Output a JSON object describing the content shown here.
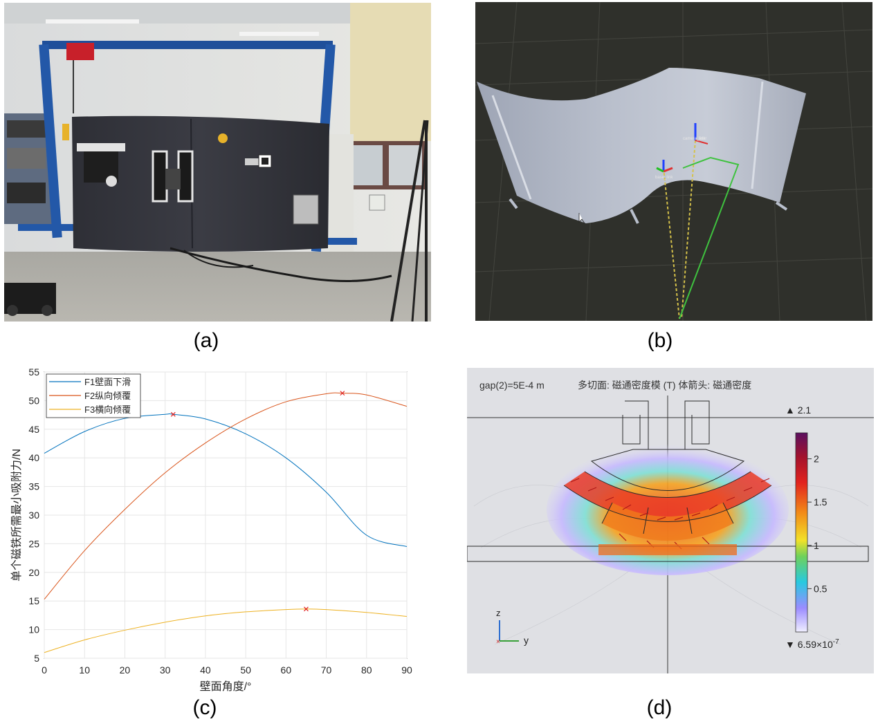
{
  "captions": {
    "a": "(a)",
    "b": "(b)",
    "c": "(c)",
    "d": "(d)"
  },
  "panel_b": {
    "frame_labels": [
      "camera_link",
      "lidar",
      "base_link"
    ]
  },
  "panel_c": {
    "chart_data": {
      "type": "line",
      "xlabel": "壁面角度/°",
      "ylabel": "单个磁铁所需最小吸附力/N",
      "xlim": [
        0,
        90
      ],
      "ylim": [
        5,
        55
      ],
      "xticks": [
        0,
        10,
        20,
        30,
        40,
        50,
        60,
        70,
        80,
        90
      ],
      "yticks": [
        5,
        10,
        15,
        20,
        25,
        30,
        35,
        40,
        45,
        50,
        55
      ],
      "series": [
        {
          "name": "F1壁面下滑",
          "color": "#0072BD",
          "x": [
            0,
            10,
            20,
            30,
            32,
            40,
            50,
            60,
            70,
            80,
            90
          ],
          "y": [
            40.8,
            44.6,
            46.9,
            47.6,
            47.6,
            46.8,
            44.2,
            40.0,
            34.0,
            26.5,
            24.5
          ],
          "max": {
            "x": 32,
            "y": 47.6
          }
        },
        {
          "name": "F2纵向倾覆",
          "color": "#D95319",
          "x": [
            0,
            10,
            20,
            30,
            40,
            50,
            60,
            70,
            74,
            80,
            90
          ],
          "y": [
            15.3,
            23.8,
            31.0,
            37.4,
            42.6,
            46.8,
            49.8,
            51.2,
            51.3,
            51.0,
            49.0
          ],
          "max": {
            "x": 74,
            "y": 51.3
          }
        },
        {
          "name": "F3横向倾覆",
          "color": "#EDB120",
          "x": [
            0,
            10,
            20,
            30,
            40,
            50,
            60,
            65,
            70,
            80,
            90
          ],
          "y": [
            6.0,
            8.2,
            9.9,
            11.3,
            12.4,
            13.1,
            13.5,
            13.6,
            13.5,
            13.0,
            12.3
          ],
          "max": {
            "x": 65,
            "y": 13.6
          }
        }
      ]
    }
  },
  "panel_d": {
    "header_left": "gap(2)=5E-4 m",
    "header_mid": "多切面: 磁通密度模 (T)  体箭头: 磁通密度",
    "max_label": "▲ 2.1",
    "min_label_base": "▼ 6.59×10",
    "min_label_exp": "-7",
    "colorbar_ticks": [
      "2",
      "1.5",
      "1",
      "0.5"
    ],
    "colorbar_tick_values": [
      2,
      1.5,
      1,
      0.5
    ],
    "colorbar_range": [
      0,
      2.3
    ],
    "axis_z": "z",
    "axis_y": "y"
  }
}
